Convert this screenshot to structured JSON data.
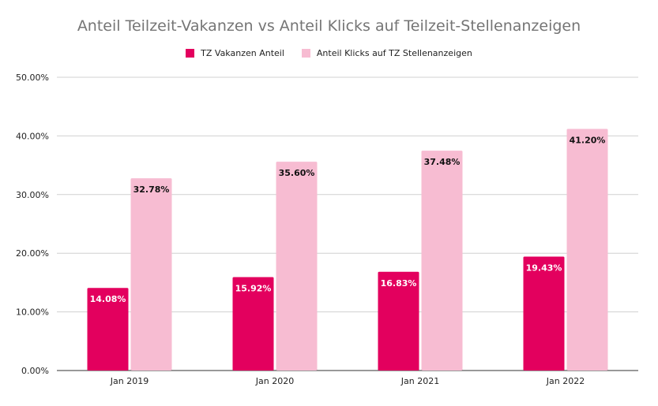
{
  "chart_data": {
    "type": "bar",
    "title": "Anteil Teilzeit-Vakanzen vs Anteil Klicks auf Teilzeit-Stellenanzeigen",
    "categories": [
      "Jan 2019",
      "Jan 2020",
      "Jan 2021",
      "Jan 2022"
    ],
    "series": [
      {
        "name": "TZ Vakanzen Anteil",
        "values": [
          14.08,
          15.92,
          16.83,
          19.43
        ],
        "color": "#e3005e",
        "label_color": "#ffffff"
      },
      {
        "name": "Anteil Klicks auf TZ Stellenanzeigen",
        "values": [
          32.78,
          35.6,
          37.48,
          41.2
        ],
        "color": "#f7bcd2",
        "label_color": "#111111"
      }
    ],
    "data_labels": [
      [
        "14.08%",
        "15.92%",
        "16.83%",
        "19.43%"
      ],
      [
        "32.78%",
        "35.60%",
        "37.48%",
        "41.20%"
      ]
    ],
    "ylim": [
      0,
      50
    ],
    "yticks": [
      0,
      10,
      20,
      30,
      40,
      50
    ],
    "ytick_labels": [
      "0.00%",
      "10.00%",
      "20.00%",
      "30.00%",
      "40.00%",
      "50.00%"
    ],
    "xlabel": "",
    "ylabel": "",
    "grid": true,
    "legend_position": "top"
  }
}
